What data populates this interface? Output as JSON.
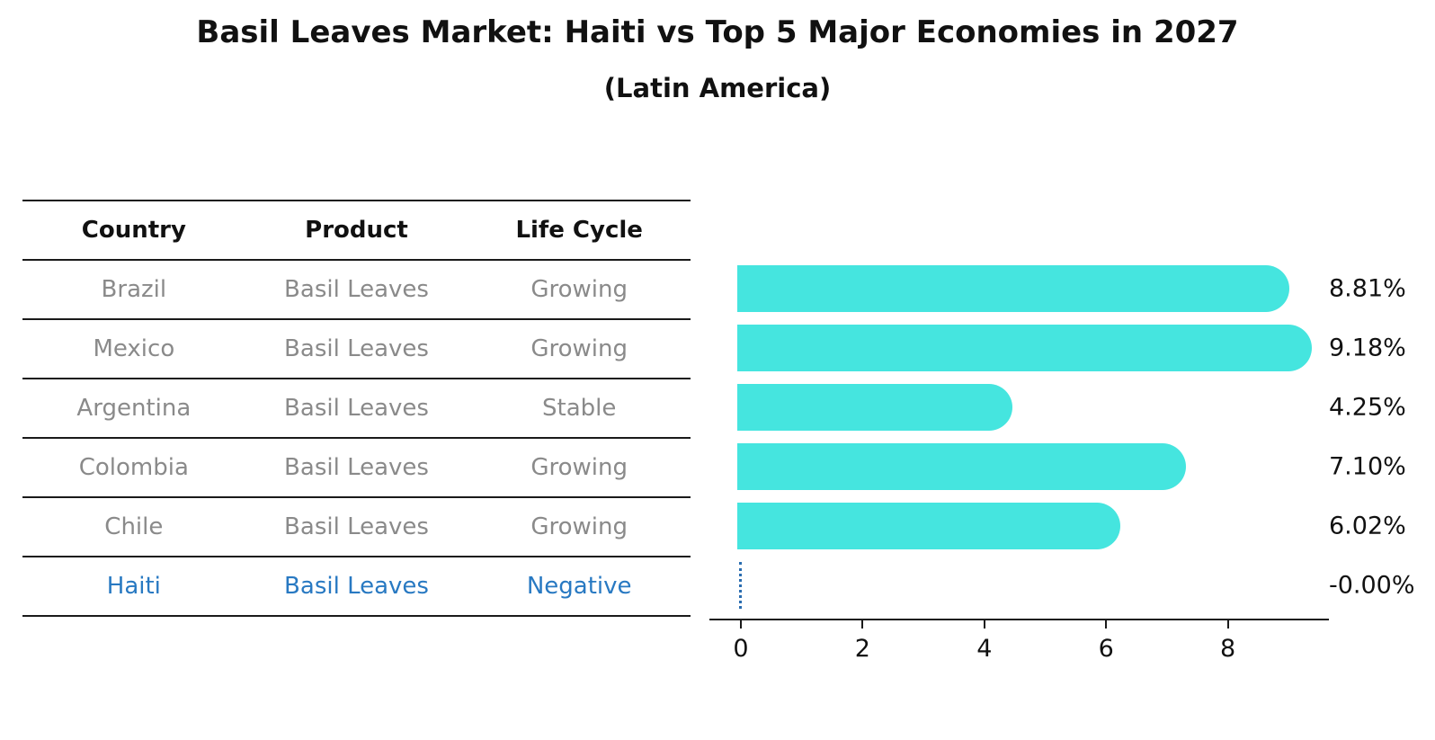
{
  "title": "Basil Leaves Market: Haiti vs Top 5 Major Economies in 2027",
  "subtitle": "(Latin America)",
  "table": {
    "headers": [
      "Country",
      "Product",
      "Life Cycle"
    ],
    "rows": [
      {
        "country": "Brazil",
        "product": "Basil Leaves",
        "life_cycle": "Growing"
      },
      {
        "country": "Mexico",
        "product": "Basil Leaves",
        "life_cycle": "Growing"
      },
      {
        "country": "Argentina",
        "product": "Basil Leaves",
        "life_cycle": "Stable"
      },
      {
        "country": "Colombia",
        "product": "Basil Leaves",
        "life_cycle": "Growing"
      },
      {
        "country": "Chile",
        "product": "Basil Leaves",
        "life_cycle": "Growing"
      },
      {
        "country": "Haiti",
        "product": "Basil Leaves",
        "life_cycle": "Negative"
      }
    ],
    "highlight_row": "Haiti"
  },
  "chart_data": {
    "type": "bar",
    "orientation": "horizontal",
    "categories": [
      "Brazil",
      "Mexico",
      "Argentina",
      "Colombia",
      "Chile",
      "Haiti"
    ],
    "values": [
      8.81,
      9.18,
      4.25,
      7.1,
      6.02,
      -0.0
    ],
    "value_labels": [
      "8.81%",
      "9.18%",
      "4.25%",
      "7.10%",
      "6.02%",
      "-0.00%"
    ],
    "x_ticks": [
      "0",
      "2",
      "4",
      "6",
      "8"
    ],
    "x_tick_values": [
      0,
      2,
      4,
      6,
      8
    ],
    "xlim": [
      0,
      9.66
    ],
    "grid": false,
    "legend": false,
    "bar_color": "#45e5df",
    "zero_line_color": "#2a6db0",
    "highlight_index": 5
  },
  "colors": {
    "bar_cyan": "#45e5df",
    "accent_blue": "#2879c2",
    "muted_text": "#8a8a8a",
    "axis_black": "#1a1a1a"
  }
}
